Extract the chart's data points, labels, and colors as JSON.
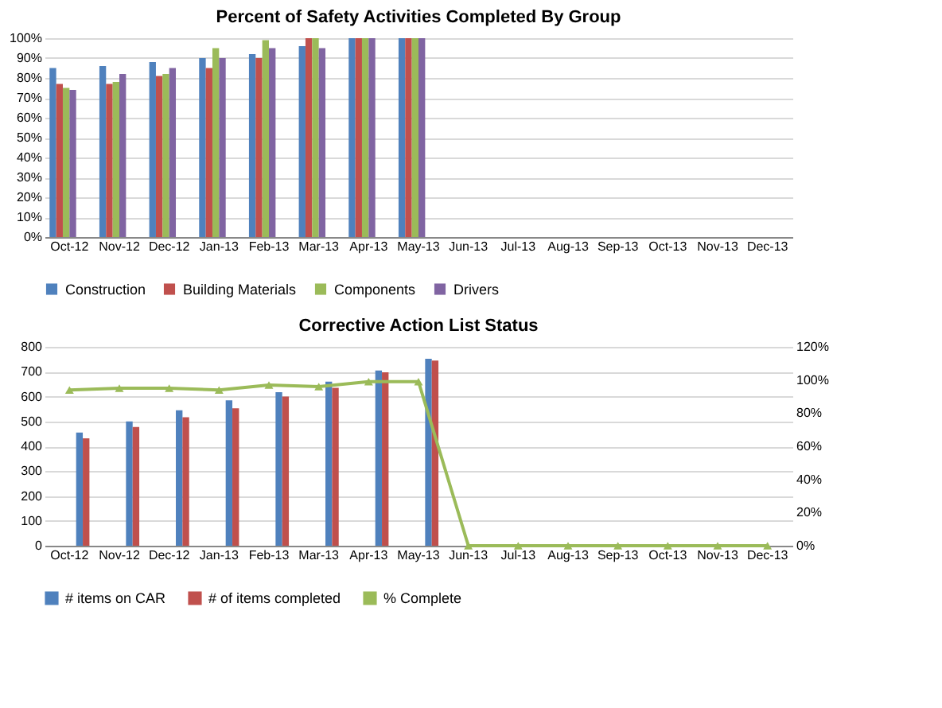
{
  "chart_data": [
    {
      "type": "bar",
      "title": "Percent of Safety Activities Completed By Group",
      "categories": [
        "Oct-12",
        "Nov-12",
        "Dec-12",
        "Jan-13",
        "Feb-13",
        "Mar-13",
        "Apr-13",
        "May-13",
        "Jun-13",
        "Jul-13",
        "Aug-13",
        "Sep-13",
        "Oct-13",
        "Nov-13",
        "Dec-13"
      ],
      "series": [
        {
          "name": "Construction",
          "color": "#4f81bd",
          "values": [
            85,
            86,
            88,
            90,
            92,
            96,
            100,
            100,
            null,
            null,
            null,
            null,
            null,
            null,
            null
          ]
        },
        {
          "name": "Building Materials",
          "color": "#c0504d",
          "values": [
            77,
            77,
            81,
            85,
            90,
            100,
            100,
            100,
            null,
            null,
            null,
            null,
            null,
            null,
            null
          ]
        },
        {
          "name": "Components",
          "color": "#9bbb59",
          "values": [
            75,
            78,
            82,
            95,
            99,
            100,
            100,
            100,
            null,
            null,
            null,
            null,
            null,
            null,
            null
          ]
        },
        {
          "name": "Drivers",
          "color": "#8064a2",
          "values": [
            74,
            82,
            85,
            90,
            95,
            95,
            100,
            100,
            null,
            null,
            null,
            null,
            null,
            null,
            null
          ]
        }
      ],
      "ylim": [
        0,
        100
      ],
      "yticks": [
        {
          "value": 0,
          "label": "0%"
        },
        {
          "value": 10,
          "label": "10%"
        },
        {
          "value": 20,
          "label": "20%"
        },
        {
          "value": 30,
          "label": "30%"
        },
        {
          "value": 40,
          "label": "40%"
        },
        {
          "value": 50,
          "label": "50%"
        },
        {
          "value": 60,
          "label": "60%"
        },
        {
          "value": 70,
          "label": "70%"
        },
        {
          "value": 80,
          "label": "80%"
        },
        {
          "value": 90,
          "label": "90%"
        },
        {
          "value": 100,
          "label": "100%"
        }
      ],
      "grid": "y",
      "legend": "bottom"
    },
    {
      "type": "bar",
      "title": "Corrective Action List Status",
      "categories": [
        "Oct-12",
        "Nov-12",
        "Dec-12",
        "Jan-13",
        "Feb-13",
        "Mar-13",
        "Apr-13",
        "May-13",
        "Jun-13",
        "Jul-13",
        "Aug-13",
        "Sep-13",
        "Oct-13",
        "Nov-13",
        "Dec-13"
      ],
      "series": [
        {
          "name": "# items on CAR",
          "color": "#4f81bd",
          "values": [
            455,
            500,
            545,
            585,
            618,
            660,
            705,
            752,
            null,
            null,
            null,
            null,
            null,
            null,
            null
          ]
        },
        {
          "name": "# of items completed",
          "color": "#c0504d",
          "values": [
            432,
            478,
            517,
            553,
            600,
            635,
            698,
            745,
            null,
            null,
            null,
            null,
            null,
            null,
            null
          ]
        },
        {
          "name": "% Complete",
          "color": "#9bbb59",
          "type": "line",
          "axis": "y2",
          "marker": "triangle",
          "values": [
            94,
            95,
            95,
            94,
            97,
            96,
            99,
            99,
            0,
            0,
            0,
            0,
            0,
            0,
            0
          ]
        }
      ],
      "ylim": [
        0,
        800
      ],
      "yticks": [
        0,
        100,
        200,
        300,
        400,
        500,
        600,
        700,
        800
      ],
      "y2lim": [
        0,
        120
      ],
      "y2ticks": [
        {
          "value": 0,
          "label": "0%"
        },
        {
          "value": 20,
          "label": "20%"
        },
        {
          "value": 40,
          "label": "40%"
        },
        {
          "value": 60,
          "label": "60%"
        },
        {
          "value": 80,
          "label": "80%"
        },
        {
          "value": 100,
          "label": "100%"
        },
        {
          "value": 120,
          "label": "120%"
        }
      ],
      "grid": "y",
      "legend": "bottom"
    }
  ]
}
